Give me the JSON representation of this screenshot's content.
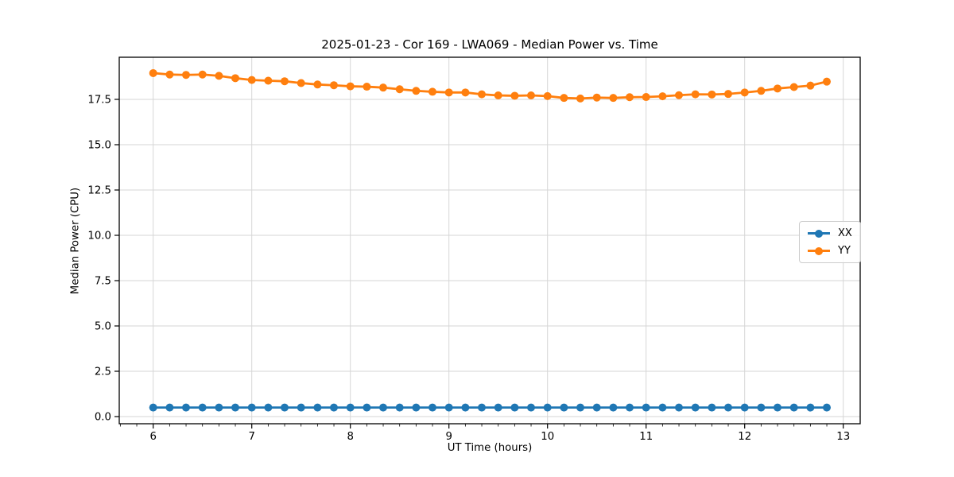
{
  "figure": {
    "title": "2025-01-23 - Cor 169 - LWA069 - Median Power vs. Time",
    "xlabel": "UT Time (hours)",
    "ylabel": "Median Power (CPU)"
  },
  "chart_data": {
    "type": "line",
    "title": "2025-01-23 - Cor 169 - LWA069 - Median Power vs. Time",
    "xlabel": "UT Time (hours)",
    "ylabel": "Median Power (CPU)",
    "grid": true,
    "legend_position": "center right",
    "xlim": [
      5.66,
      13.17
    ],
    "ylim": [
      -0.4,
      19.8
    ],
    "x_ticks": [
      6,
      7,
      8,
      9,
      10,
      11,
      12,
      13
    ],
    "x_tick_labels": [
      "6",
      "7",
      "8",
      "9",
      "10",
      "11",
      "12",
      "13"
    ],
    "x_minor_tick_step_hours": 0.1667,
    "y_ticks": [
      0.0,
      2.5,
      5.0,
      7.5,
      10.0,
      12.5,
      15.0,
      17.5
    ],
    "y_tick_labels": [
      "0.0",
      "2.5",
      "5.0",
      "7.5",
      "10.0",
      "12.5",
      "15.0",
      "17.5"
    ],
    "grid_color": "#d6d6d6",
    "axis_color": "#000000",
    "x": [
      6.0,
      6.167,
      6.333,
      6.5,
      6.667,
      6.833,
      7.0,
      7.167,
      7.333,
      7.5,
      7.667,
      7.833,
      8.0,
      8.167,
      8.333,
      8.5,
      8.667,
      8.833,
      9.0,
      9.167,
      9.333,
      9.5,
      9.667,
      9.833,
      10.0,
      10.167,
      10.333,
      10.5,
      10.667,
      10.833,
      11.0,
      11.167,
      11.333,
      11.5,
      11.667,
      11.833,
      12.0,
      12.167,
      12.333,
      12.5,
      12.667,
      12.833
    ],
    "series": [
      {
        "name": "XX",
        "color": "#1f77b4",
        "values": [
          0.5,
          0.5,
          0.5,
          0.5,
          0.5,
          0.5,
          0.5,
          0.5,
          0.5,
          0.5,
          0.5,
          0.5,
          0.5,
          0.5,
          0.5,
          0.5,
          0.5,
          0.5,
          0.5,
          0.5,
          0.5,
          0.5,
          0.5,
          0.5,
          0.5,
          0.5,
          0.5,
          0.5,
          0.5,
          0.5,
          0.5,
          0.5,
          0.5,
          0.5,
          0.5,
          0.5,
          0.5,
          0.5,
          0.5,
          0.5,
          0.5,
          0.5
        ]
      },
      {
        "name": "YY",
        "color": "#ff7f0e",
        "values": [
          18.95,
          18.87,
          18.85,
          18.87,
          18.8,
          18.67,
          18.57,
          18.53,
          18.5,
          18.4,
          18.32,
          18.28,
          18.22,
          18.2,
          18.15,
          18.06,
          17.97,
          17.92,
          17.88,
          17.88,
          17.78,
          17.72,
          17.7,
          17.72,
          17.68,
          17.58,
          17.55,
          17.6,
          17.58,
          17.62,
          17.63,
          17.67,
          17.73,
          17.78,
          17.77,
          17.8,
          17.88,
          17.97,
          18.1,
          18.18,
          18.26,
          18.48
        ]
      }
    ]
  }
}
